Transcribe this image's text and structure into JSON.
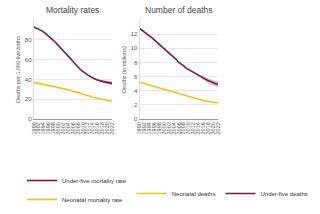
{
  "chart_data": [
    {
      "type": "line",
      "title": "Mortality rates",
      "y_label": "Deaths per 1,000 live births",
      "x": [
        1990,
        1991,
        1992,
        1993,
        1994,
        1995,
        1996,
        1997,
        1998,
        1999,
        2000,
        2001,
        2002,
        2003,
        2004,
        2005,
        2006,
        2007,
        2008,
        2009,
        2010,
        2011,
        2012,
        2013,
        2014,
        2015,
        2016,
        2017,
        2018,
        2019,
        2020,
        2021,
        2022
      ],
      "series": [
        {
          "name": "Under-five mortality rate",
          "color": "#7d1845",
          "values": [
            93,
            92,
            91,
            89.5,
            88,
            86,
            84,
            82,
            79.5,
            77,
            74.5,
            72,
            69.5,
            67,
            64,
            61,
            58,
            55,
            52.5,
            50,
            48,
            46,
            44.5,
            43,
            41.5,
            40.5,
            39.5,
            38.5,
            38,
            37.5,
            37,
            36.5,
            36
          ],
          "lower": [
            null,
            null,
            null,
            null,
            null,
            null,
            null,
            null,
            null,
            null,
            null,
            null,
            null,
            null,
            null,
            null,
            null,
            null,
            null,
            null,
            null,
            null,
            null,
            null,
            null,
            39.5,
            38.5,
            37.5,
            36.5,
            36,
            35,
            34.5,
            33.5
          ],
          "upper": [
            null,
            null,
            null,
            null,
            null,
            null,
            null,
            null,
            null,
            null,
            null,
            null,
            null,
            null,
            null,
            null,
            null,
            null,
            null,
            null,
            null,
            null,
            null,
            null,
            null,
            41.5,
            40.5,
            39.5,
            39.5,
            39,
            39,
            38.5,
            38.5
          ]
        },
        {
          "name": "Neonatal mortality rate",
          "color": "#f4c20d",
          "values": [
            37,
            36.5,
            36,
            35.5,
            35,
            34.5,
            34,
            33.5,
            33,
            32.5,
            32,
            31.5,
            31,
            30,
            29.5,
            29,
            28,
            27.5,
            26.5,
            26,
            25,
            24.5,
            23.5,
            23,
            22,
            21.5,
            21,
            20.5,
            20,
            19.5,
            19,
            18.5,
            18
          ]
        }
      ],
      "xlim": [
        1990,
        2022
      ],
      "ylim": [
        0,
        100
      ],
      "xticks": [
        1990,
        1992,
        1994,
        1996,
        1998,
        2000,
        2002,
        2004,
        2006,
        2008,
        2010,
        2012,
        2014,
        2016,
        2018,
        2020,
        2022
      ],
      "yticks": [
        0,
        20,
        40,
        60,
        80
      ],
      "grid": true,
      "legend": "bottom"
    },
    {
      "type": "line",
      "title": "Number of deaths",
      "y_label": "Deaths (in millions)",
      "x": [
        1990,
        1991,
        1992,
        1993,
        1994,
        1995,
        1996,
        1997,
        1998,
        1999,
        2000,
        2001,
        2002,
        2003,
        2004,
        2005,
        2006,
        2007,
        2008,
        2009,
        2010,
        2011,
        2012,
        2013,
        2014,
        2015,
        2016,
        2017,
        2018,
        2019,
        2020,
        2021,
        2022
      ],
      "series": [
        {
          "name": "Neonatal deaths",
          "color": "#f4c20d",
          "values": [
            5.2,
            5.1,
            5.0,
            4.9,
            4.8,
            4.7,
            4.6,
            4.5,
            4.4,
            4.3,
            4.2,
            4.1,
            4.0,
            3.9,
            3.7,
            3.6,
            3.5,
            3.4,
            3.3,
            3.2,
            3.1,
            3.0,
            2.9,
            2.8,
            2.7,
            2.7,
            2.6,
            2.5,
            2.5,
            2.4,
            2.4,
            2.3,
            2.3
          ]
        },
        {
          "name": "Under-five deaths",
          "color": "#7d1845",
          "values": [
            12.8,
            12.6,
            12.3,
            12.0,
            11.8,
            11.5,
            11.2,
            10.9,
            10.6,
            10.3,
            10.0,
            9.7,
            9.4,
            9.0,
            8.7,
            8.4,
            8.0,
            7.8,
            7.5,
            7.2,
            7.0,
            6.7,
            6.5,
            6.3,
            6.1,
            5.9,
            5.7,
            5.5,
            5.4,
            5.3,
            5.1,
            5.0,
            4.9
          ],
          "lower": [
            null,
            null,
            null,
            null,
            null,
            null,
            null,
            null,
            null,
            null,
            null,
            null,
            null,
            null,
            null,
            null,
            null,
            null,
            null,
            null,
            null,
            null,
            null,
            null,
            null,
            5.7,
            5.5,
            5.3,
            5.1,
            5.0,
            4.8,
            4.6,
            4.5
          ],
          "upper": [
            null,
            null,
            null,
            null,
            null,
            null,
            null,
            null,
            null,
            null,
            null,
            null,
            null,
            null,
            null,
            null,
            null,
            null,
            null,
            null,
            null,
            null,
            null,
            null,
            null,
            6.1,
            5.9,
            5.8,
            5.7,
            5.7,
            5.5,
            5.4,
            5.3
          ]
        }
      ],
      "xlim": [
        1990,
        2022
      ],
      "ylim": [
        0,
        14
      ],
      "xticks": [
        1990,
        1992,
        1994,
        1996,
        1998,
        2000,
        2002,
        2004,
        2006,
        2008,
        2010,
        2012,
        2014,
        2016,
        2018,
        2020,
        2022
      ],
      "yticks": [
        0,
        2,
        4,
        6,
        8,
        10,
        12
      ],
      "grid": true,
      "legend": "bottom"
    }
  ]
}
